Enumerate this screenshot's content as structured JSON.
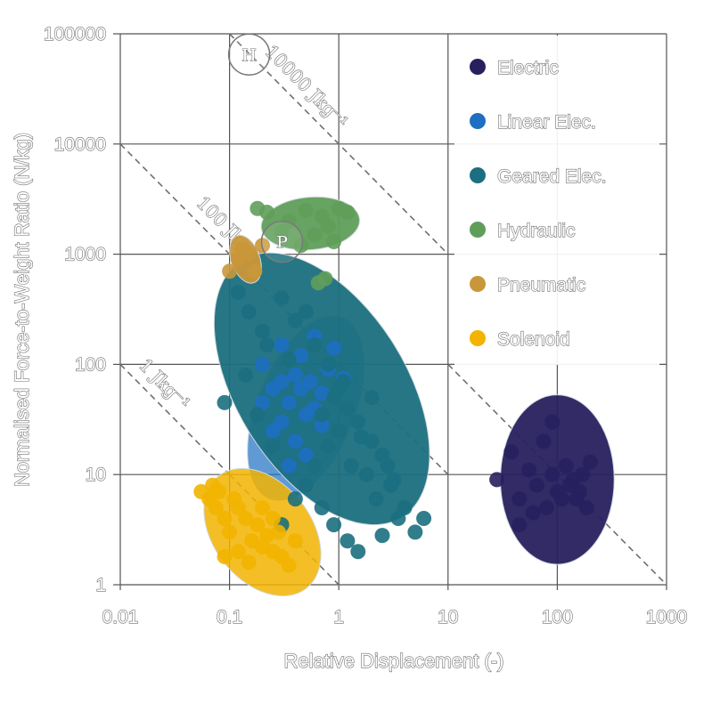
{
  "chart_data": {
    "type": "scatter",
    "xlabel": "Relative Displacement (-)",
    "ylabel": "Normalised Force-to-Weight Ratio (N/kg)",
    "x_scale": "log",
    "y_scale": "log",
    "xlim": [
      0.01,
      1000
    ],
    "ylim": [
      1,
      100000
    ],
    "x_ticks": [
      {
        "value": 0.01,
        "label": "0.01"
      },
      {
        "value": 0.1,
        "label": "0.1"
      },
      {
        "value": 1,
        "label": "1"
      },
      {
        "value": 10,
        "label": "10"
      },
      {
        "value": 100,
        "label": "100"
      },
      {
        "value": 1000,
        "label": "1000"
      }
    ],
    "y_ticks": [
      {
        "value": 1,
        "label": "1"
      },
      {
        "value": 10,
        "label": "10"
      },
      {
        "value": 100,
        "label": "100"
      },
      {
        "value": 1000,
        "label": "1000"
      },
      {
        "value": 10000,
        "label": "10000"
      },
      {
        "value": 100000,
        "label": "100000"
      }
    ],
    "grid": true,
    "legend_position": "top-right",
    "series": [
      {
        "name": "Electric",
        "color": "#27205e",
        "region": {
          "center": [
            100,
            9
          ],
          "x_span": [
            30,
            330
          ],
          "y_span": [
            1.1,
            38
          ]
        },
        "points": [
          [
            28,
            9
          ],
          [
            38,
            16
          ],
          [
            45,
            6
          ],
          [
            55,
            11
          ],
          [
            65,
            8
          ],
          [
            75,
            20
          ],
          [
            80,
            5
          ],
          [
            90,
            10
          ],
          [
            100,
            7
          ],
          [
            110,
            6
          ],
          [
            120,
            12
          ],
          [
            130,
            8
          ],
          [
            140,
            9
          ],
          [
            150,
            6
          ],
          [
            160,
            7
          ],
          [
            170,
            10
          ],
          [
            185,
            5
          ],
          [
            200,
            13
          ],
          [
            90,
            30
          ],
          [
            60,
            4.5
          ],
          [
            45,
            3.5
          ]
        ]
      },
      {
        "name": "Linear Elec.",
        "color": "#1d6fc2",
        "region": {
          "center": [
            0.5,
            40
          ],
          "x_span": [
            0.12,
            2.2
          ],
          "y_span": [
            5.5,
            310
          ]
        },
        "points": [
          [
            0.2,
            100
          ],
          [
            0.25,
            60
          ],
          [
            0.3,
            150
          ],
          [
            0.35,
            45
          ],
          [
            0.4,
            80
          ],
          [
            0.45,
            120
          ],
          [
            0.5,
            35
          ],
          [
            0.55,
            70
          ],
          [
            0.6,
            180
          ],
          [
            0.7,
            55
          ],
          [
            0.8,
            90
          ],
          [
            0.9,
            140
          ],
          [
            0.3,
            30
          ],
          [
            0.25,
            25
          ],
          [
            0.4,
            20
          ],
          [
            0.5,
            15
          ],
          [
            0.35,
            12
          ],
          [
            0.6,
            40
          ],
          [
            0.7,
            28
          ],
          [
            1.1,
            75
          ],
          [
            0.2,
            45
          ],
          [
            0.3,
            70
          ],
          [
            0.45,
            60
          ]
        ]
      },
      {
        "name": "Geared Elec.",
        "color": "#1b6f80",
        "region": {
          "center": [
            0.7,
            60
          ],
          "x_span": [
            0.07,
            6.2
          ],
          "y_span": [
            1.3,
            650
          ]
        },
        "points": [
          [
            0.09,
            45
          ],
          [
            0.12,
            450
          ],
          [
            0.15,
            300
          ],
          [
            0.2,
            200
          ],
          [
            0.3,
            400
          ],
          [
            0.4,
            250
          ],
          [
            0.6,
            150
          ],
          [
            1,
            60
          ],
          [
            1.2,
            40
          ],
          [
            1.5,
            30
          ],
          [
            2,
            20
          ],
          [
            2.5,
            15
          ],
          [
            3,
            8
          ],
          [
            4,
            5
          ],
          [
            5,
            3
          ],
          [
            1.8,
            10
          ],
          [
            1.3,
            12
          ],
          [
            2.2,
            6
          ],
          [
            3.5,
            4
          ],
          [
            1,
            25
          ],
          [
            0.8,
            18
          ],
          [
            0.6,
            12
          ],
          [
            0.5,
            8
          ],
          [
            0.7,
            5
          ],
          [
            0.9,
            3.5
          ],
          [
            1.2,
            2.5
          ],
          [
            1.5,
            2
          ],
          [
            2.5,
            2.8
          ],
          [
            0.18,
            35
          ],
          [
            0.14,
            80
          ],
          [
            0.22,
            150
          ],
          [
            0.35,
            110
          ],
          [
            0.9,
            50
          ],
          [
            1.6,
            22
          ],
          [
            2.8,
            12
          ],
          [
            3.2,
            9
          ],
          [
            0.4,
            6
          ],
          [
            0.3,
            3.5
          ],
          [
            1.1,
            70
          ],
          [
            0.7,
            35
          ],
          [
            0.25,
            18
          ],
          [
            0.5,
            300
          ],
          [
            0.8,
            100
          ],
          [
            2,
            50
          ],
          [
            6,
            4
          ]
        ]
      },
      {
        "name": "Hydraulic",
        "color": "#5f9e5a",
        "region": {
          "center": [
            0.55,
            1900
          ],
          "x_span": [
            0.2,
            1.6
          ],
          "y_span": [
            1000,
            3000
          ]
        },
        "points": [
          [
            0.22,
            2400
          ],
          [
            0.35,
            2000
          ],
          [
            0.5,
            2500
          ],
          [
            0.6,
            1500
          ],
          [
            0.7,
            2200
          ],
          [
            0.8,
            1800
          ],
          [
            1,
            2600
          ],
          [
            1.2,
            2400
          ],
          [
            0.45,
            1200
          ],
          [
            0.9,
            1300
          ],
          [
            0.3,
            1600
          ],
          [
            0.75,
            600
          ],
          [
            0.65,
            550
          ],
          [
            0.18,
            2600
          ]
        ]
      },
      {
        "name": "Pneumatic",
        "color": "#c9973a",
        "region": {
          "center": [
            0.14,
            900
          ],
          "x_span": [
            0.1,
            0.23
          ],
          "y_span": [
            450,
            1400
          ]
        },
        "points": [
          [
            0.12,
            900
          ],
          [
            0.15,
            1000
          ],
          [
            0.17,
            700
          ],
          [
            0.13,
            1100
          ],
          [
            0.1,
            700
          ],
          [
            0.2,
            1200
          ]
        ]
      },
      {
        "name": "Solenoid",
        "color": "#f2b400",
        "region": {
          "center": [
            0.2,
            3
          ],
          "x_span": [
            0.045,
            0.75
          ],
          "y_span": [
            0.9,
            12
          ]
        },
        "points": [
          [
            0.055,
            7
          ],
          [
            0.065,
            6
          ],
          [
            0.075,
            5
          ],
          [
            0.08,
            7
          ],
          [
            0.09,
            4
          ],
          [
            0.1,
            3
          ],
          [
            0.12,
            5
          ],
          [
            0.14,
            4
          ],
          [
            0.16,
            2.5
          ],
          [
            0.18,
            3.5
          ],
          [
            0.2,
            2.2
          ],
          [
            0.22,
            2.8
          ],
          [
            0.25,
            2
          ],
          [
            0.3,
            1.8
          ],
          [
            0.35,
            1.5
          ],
          [
            0.4,
            2.5
          ],
          [
            0.28,
            3
          ],
          [
            0.12,
            2
          ],
          [
            0.15,
            1.6
          ],
          [
            0.09,
            1.8
          ],
          [
            0.07,
            8
          ],
          [
            0.2,
            5
          ],
          [
            0.25,
            4
          ],
          [
            0.11,
            6
          ]
        ]
      }
    ],
    "reference_lines": [
      {
        "label": "1 Jkg⁻¹",
        "product": 1,
        "x_range": [
          0.01,
          0.1
        ]
      },
      {
        "label": "100 Jkg⁻¹",
        "product": 100,
        "x_range": [
          0.01,
          10
        ]
      },
      {
        "label": "10000 Jkg⁻¹",
        "product": 10000,
        "x_range": [
          0.1,
          10
        ]
      },
      {
        "label": "",
        "product": 1000,
        "x_range": [
          10,
          1000
        ]
      },
      {
        "label": "",
        "product": 1,
        "x_range": [
          0.1,
          1
        ]
      }
    ],
    "badges": [
      {
        "label": "H",
        "x": 0.1,
        "y": 50000
      },
      {
        "label": "P",
        "x": 0.2,
        "y": 1000
      }
    ]
  }
}
